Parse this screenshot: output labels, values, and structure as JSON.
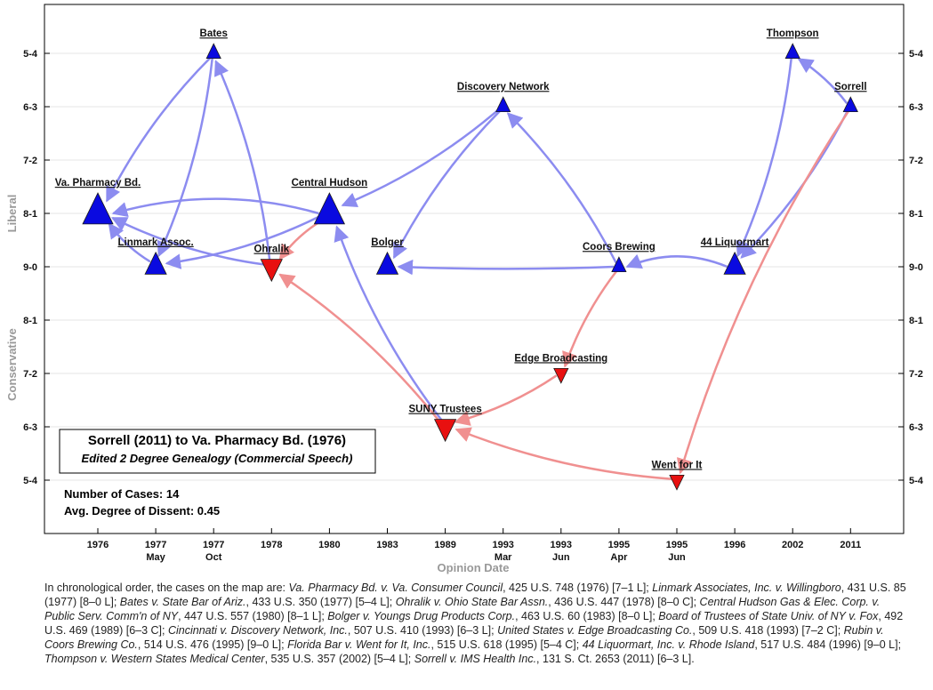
{
  "chart_data": {
    "type": "network",
    "x_label": "Opinion Date",
    "y_label_top": "Liberal",
    "y_label_bottom": "Conservative",
    "x_categories": [
      {
        "top": "1976",
        "bottom": ""
      },
      {
        "top": "1977",
        "bottom": "May"
      },
      {
        "top": "1977",
        "bottom": "Oct"
      },
      {
        "top": "1978",
        "bottom": ""
      },
      {
        "top": "1980",
        "bottom": ""
      },
      {
        "top": "1983",
        "bottom": ""
      },
      {
        "top": "1989",
        "bottom": ""
      },
      {
        "top": "1993",
        "bottom": "Mar"
      },
      {
        "top": "1993",
        "bottom": "Jun"
      },
      {
        "top": "1995",
        "bottom": "Apr"
      },
      {
        "top": "1995",
        "bottom": "Jun"
      },
      {
        "top": "1996",
        "bottom": ""
      },
      {
        "top": "2002",
        "bottom": ""
      },
      {
        "top": "2011",
        "bottom": ""
      }
    ],
    "y_ticks": [
      "5-4",
      "6-3",
      "7-2",
      "8-1",
      "9-0",
      "8-1",
      "7-2",
      "6-3",
      "5-4"
    ],
    "nodes": [
      {
        "id": "vapharm",
        "label": "Va. Pharmacy Bd.",
        "x": 0,
        "y": 3,
        "dir": "up",
        "size": 3
      },
      {
        "id": "linmark",
        "label": "Linmark Assoc.",
        "x": 1,
        "y": 4,
        "dir": "up",
        "size": 2
      },
      {
        "id": "bates",
        "label": "Bates",
        "x": 2,
        "y": 0,
        "dir": "up",
        "size": 1
      },
      {
        "id": "ohralik",
        "label": "Ohralik",
        "x": 3,
        "y": 4,
        "dir": "down",
        "size": 2
      },
      {
        "id": "central",
        "label": "Central Hudson",
        "x": 4,
        "y": 3,
        "dir": "up",
        "size": 3
      },
      {
        "id": "bolger",
        "label": "Bolger",
        "x": 5,
        "y": 4,
        "dir": "up",
        "size": 2
      },
      {
        "id": "suny",
        "label": "SUNY Trustees",
        "x": 6,
        "y": 7,
        "dir": "down",
        "size": 2
      },
      {
        "id": "discovery",
        "label": "Discovery Network",
        "x": 7,
        "y": 1,
        "dir": "up",
        "size": 1
      },
      {
        "id": "edge",
        "label": "Edge Broadcasting",
        "x": 8,
        "y": 6,
        "dir": "down",
        "size": 1
      },
      {
        "id": "coors",
        "label": "Coors Brewing",
        "x": 9,
        "y": 4,
        "dir": "up",
        "size": 1
      },
      {
        "id": "wentfor",
        "label": "Went for It",
        "x": 10,
        "y": 8,
        "dir": "down",
        "size": 1
      },
      {
        "id": "liquormart",
        "label": "44 Liquormart",
        "x": 11,
        "y": 4,
        "dir": "up",
        "size": 2
      },
      {
        "id": "thompson",
        "label": "Thompson",
        "x": 12,
        "y": 0,
        "dir": "up",
        "size": 1
      },
      {
        "id": "sorrell",
        "label": "Sorrell",
        "x": 13,
        "y": 1,
        "dir": "up",
        "size": 1
      }
    ],
    "edges": [
      {
        "from": "linmark",
        "to": "vapharm",
        "type": "pos"
      },
      {
        "from": "bates",
        "to": "vapharm",
        "type": "pos"
      },
      {
        "from": "bates",
        "to": "linmark",
        "type": "pos"
      },
      {
        "from": "ohralik",
        "to": "bates",
        "type": "pos"
      },
      {
        "from": "ohralik",
        "to": "vapharm",
        "type": "pos"
      },
      {
        "from": "central",
        "to": "vapharm",
        "type": "pos"
      },
      {
        "from": "central",
        "to": "linmark",
        "type": "pos"
      },
      {
        "from": "central",
        "to": "ohralik",
        "type": "neg"
      },
      {
        "from": "suny",
        "to": "central",
        "type": "pos"
      },
      {
        "from": "suny",
        "to": "ohralik",
        "type": "neg"
      },
      {
        "from": "discovery",
        "to": "central",
        "type": "pos"
      },
      {
        "from": "discovery",
        "to": "bolger",
        "type": "pos"
      },
      {
        "from": "edge",
        "to": "suny",
        "type": "neg"
      },
      {
        "from": "coors",
        "to": "discovery",
        "type": "pos"
      },
      {
        "from": "coors",
        "to": "bolger",
        "type": "pos"
      },
      {
        "from": "coors",
        "to": "edge",
        "type": "neg"
      },
      {
        "from": "wentfor",
        "to": "suny",
        "type": "neg"
      },
      {
        "from": "liquormart",
        "to": "coors",
        "type": "pos"
      },
      {
        "from": "thompson",
        "to": "liquormart",
        "type": "pos"
      },
      {
        "from": "sorrell",
        "to": "thompson",
        "type": "pos"
      },
      {
        "from": "sorrell",
        "to": "liquormart",
        "type": "pos"
      },
      {
        "from": "sorrell",
        "to": "wentfor",
        "type": "neg"
      }
    ]
  },
  "colors": {
    "liberal": "#0a0ae0",
    "conservative": "#e81010",
    "pos_edge": "#8c8cf0",
    "neg_edge": "#f09090"
  },
  "info_box": {
    "title": "Sorrell (2011) to Va. Pharmacy Bd. (1976)",
    "subtitle": "Edited 2 Degree Genealogy (Commercial Speech)"
  },
  "stats": {
    "cases": "Number of Cases: 14",
    "dissent": "Avg. Degree of Dissent: 0.45"
  },
  "caption": [
    {
      "t": "In chronological order, the cases on the map are:  "
    },
    {
      "t": "Va. Pharmacy Bd. v. Va. Consumer Council",
      "i": true
    },
    {
      "t": ", 425 U.S. 748 (1976) [7–1 L];  "
    },
    {
      "t": "Linmark Associates, Inc. v. Willingboro",
      "i": true
    },
    {
      "t": ", 431 U.S. 85 (1977) [8–0 L];  "
    },
    {
      "t": "Bates v. State Bar of Ariz.",
      "i": true
    },
    {
      "t": ", 433 U.S. 350 (1977) [5–4 L];  "
    },
    {
      "t": "Ohralik v. Ohio State Bar Assn.",
      "i": true
    },
    {
      "t": ", 436 U.S. 447 (1978) [8–0 C];  "
    },
    {
      "t": "Central Hudson Gas & Elec. Corp. v. Public Serv. Comm'n of NY",
      "i": true
    },
    {
      "t": ", 447 U.S. 557 (1980) [8–1 L];  "
    },
    {
      "t": "Bolger v. Youngs Drug Products Corp.",
      "i": true
    },
    {
      "t": ", 463 U.S. 60 (1983) [8–0 L];  "
    },
    {
      "t": "Board of Trustees of State Univ. of NY v. Fox",
      "i": true
    },
    {
      "t": ", 492 U.S. 469 (1989) [6–3 C];  "
    },
    {
      "t": "Cincinnati v. Discovery Network, Inc.",
      "i": true
    },
    {
      "t": ", 507 U.S. 410 (1993) [6–3 L];  "
    },
    {
      "t": "United States v. Edge Broadcasting Co.",
      "i": true
    },
    {
      "t": ", 509 U.S. 418 (1993) [7–2 C];  "
    },
    {
      "t": "Rubin v. Coors Brewing Co.",
      "i": true
    },
    {
      "t": ", 514 U.S. 476 (1995) [9–0 L];  "
    },
    {
      "t": "Florida Bar v. Went for It, Inc.",
      "i": true
    },
    {
      "t": ", 515 U.S. 618 (1995) [5–4 C];  "
    },
    {
      "t": "44 Liquormart, Inc. v. Rhode Island",
      "i": true
    },
    {
      "t": ", 517 U.S. 484 (1996) [9–0 L];  "
    },
    {
      "t": "Thompson v. Western States Medical Center",
      "i": true
    },
    {
      "t": ", 535 U.S. 357 (2002) [5–4 L];  "
    },
    {
      "t": "Sorrell v. IMS Health Inc.",
      "i": true
    },
    {
      "t": ", 131 S. Ct. 2653 (2011) [6–3 L]."
    }
  ]
}
